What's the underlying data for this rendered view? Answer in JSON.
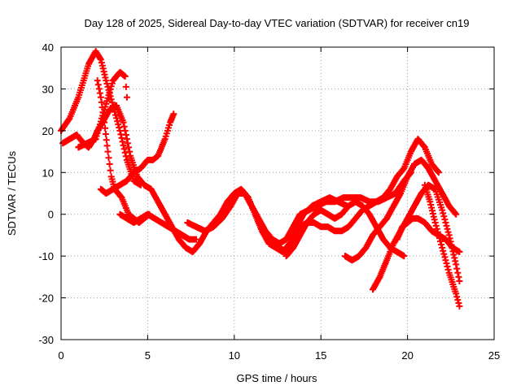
{
  "chart_data": {
    "type": "scatter",
    "title": "Day 128 of 2025, Sidereal Day-to-day VTEC variation (SDTVAR) for receiver cn19",
    "xlabel": "GPS time / hours",
    "ylabel": "SDTVAR / TECUs",
    "xlim": [
      0,
      25
    ],
    "ylim": [
      -30,
      40
    ],
    "xticks": [
      0,
      5,
      10,
      15,
      20,
      25
    ],
    "yticks": [
      -30,
      -20,
      -10,
      0,
      10,
      20,
      30,
      40
    ],
    "grid": true,
    "marker": "plus",
    "color": "#ff0000",
    "series": [
      {
        "name": "s1",
        "points": [
          [
            0,
            20
          ],
          [
            0.5,
            23
          ],
          [
            1,
            28
          ],
          [
            1.3,
            32
          ],
          [
            1.6,
            36
          ],
          [
            2,
            39
          ],
          [
            2.3,
            37
          ],
          [
            2.6,
            32
          ],
          [
            3,
            26
          ],
          [
            3.4,
            20
          ],
          [
            3.8,
            13
          ],
          [
            4.2,
            8
          ],
          [
            4.6,
            7
          ]
        ]
      },
      {
        "name": "s2",
        "points": [
          [
            0.1,
            17
          ],
          [
            0.5,
            18
          ],
          [
            0.9,
            19
          ],
          [
            1.3,
            17
          ],
          [
            1.6,
            16
          ],
          [
            1.9,
            18
          ],
          [
            2.1,
            20
          ],
          [
            2.4,
            22
          ],
          [
            2.8,
            25
          ],
          [
            3.2,
            26
          ],
          [
            3.6,
            22
          ],
          [
            4,
            14
          ],
          [
            4.4,
            9
          ],
          [
            4.8,
            7
          ],
          [
            5.2,
            6
          ],
          [
            5.6,
            3
          ],
          [
            6,
            0
          ],
          [
            6.4,
            -3
          ],
          [
            6.8,
            -6
          ],
          [
            7.2,
            -8
          ],
          [
            7.6,
            -9
          ],
          [
            8,
            -7
          ],
          [
            8.4,
            -4
          ],
          [
            8.8,
            -2
          ],
          [
            9.2,
            0
          ],
          [
            9.6,
            3
          ],
          [
            10,
            5
          ],
          [
            10.4,
            6
          ],
          [
            10.8,
            4
          ],
          [
            11.2,
            0
          ],
          [
            11.6,
            -4
          ],
          [
            12,
            -7
          ],
          [
            12.4,
            -8
          ],
          [
            12.8,
            -9
          ],
          [
            13.2,
            -7
          ],
          [
            13.6,
            -3
          ],
          [
            14,
            0
          ],
          [
            14.5,
            2
          ],
          [
            15,
            3
          ],
          [
            15.5,
            4
          ],
          [
            16,
            3
          ],
          [
            16.5,
            2
          ]
        ]
      },
      {
        "name": "s3",
        "points": [
          [
            1,
            16
          ],
          [
            1.5,
            17
          ],
          [
            2,
            18
          ],
          [
            2.5,
            25
          ],
          [
            3,
            32
          ],
          [
            3.4,
            34
          ],
          [
            3.7,
            33
          ],
          [
            3.8,
            28
          ]
        ]
      },
      {
        "name": "s4",
        "points": [
          [
            2.1,
            32
          ],
          [
            2.3,
            28
          ],
          [
            2.5,
            22
          ],
          [
            2.7,
            15
          ],
          [
            2.9,
            9
          ],
          [
            3.1,
            6
          ],
          [
            3.5,
            4
          ],
          [
            3.9,
            0
          ],
          [
            4.2,
            -1
          ],
          [
            4.5,
            -2
          ],
          [
            4.8,
            -1
          ],
          [
            5.1,
            0
          ]
        ]
      },
      {
        "name": "s5",
        "points": [
          [
            2.3,
            6
          ],
          [
            2.6,
            5
          ],
          [
            3,
            6
          ],
          [
            3.4,
            7
          ],
          [
            3.8,
            8
          ],
          [
            4.2,
            10
          ],
          [
            4.6,
            11
          ],
          [
            5,
            13
          ],
          [
            5.3,
            13
          ],
          [
            5.6,
            14
          ],
          [
            6,
            18
          ],
          [
            6.3,
            22
          ],
          [
            6.5,
            24
          ]
        ]
      },
      {
        "name": "s6",
        "points": [
          [
            3.4,
            0
          ],
          [
            3.8,
            -1
          ],
          [
            4.2,
            -2
          ],
          [
            4.6,
            -1
          ],
          [
            5,
            0
          ],
          [
            5.4,
            -1
          ],
          [
            5.8,
            -2
          ],
          [
            6.2,
            -3
          ],
          [
            6.6,
            -4
          ],
          [
            7,
            -5
          ],
          [
            7.4,
            -6
          ],
          [
            7.8,
            -6
          ]
        ]
      },
      {
        "name": "s7",
        "points": [
          [
            7.3,
            -2
          ],
          [
            7.8,
            -3
          ],
          [
            8.3,
            -4
          ],
          [
            8.8,
            -3
          ],
          [
            9.3,
            -1
          ],
          [
            9.8,
            2
          ],
          [
            10.2,
            5
          ],
          [
            10.6,
            5
          ],
          [
            11,
            2
          ],
          [
            11.4,
            -1
          ],
          [
            11.8,
            -4
          ],
          [
            12.2,
            -6
          ],
          [
            12.6,
            -7
          ],
          [
            13,
            -6
          ],
          [
            13.4,
            -3
          ],
          [
            13.8,
            0
          ],
          [
            14.3,
            1
          ],
          [
            14.8,
            2
          ],
          [
            15.3,
            3
          ],
          [
            15.8,
            3
          ],
          [
            16.3,
            4
          ],
          [
            16.8,
            4
          ],
          [
            17.3,
            4
          ],
          [
            17.8,
            3
          ],
          [
            18.3,
            3
          ],
          [
            18.8,
            4
          ],
          [
            19.3,
            5
          ],
          [
            19.8,
            8
          ],
          [
            20.2,
            10
          ]
        ]
      },
      {
        "name": "s8",
        "points": [
          [
            12.6,
            -8
          ],
          [
            13,
            -9
          ],
          [
            13.4,
            -6
          ],
          [
            13.8,
            -3
          ],
          [
            14.2,
            -2
          ],
          [
            14.6,
            -2
          ],
          [
            15,
            -3
          ],
          [
            15.4,
            -3
          ],
          [
            15.8,
            -4
          ],
          [
            16.2,
            -4
          ],
          [
            16.6,
            -3
          ],
          [
            17,
            -1
          ],
          [
            17.4,
            1
          ],
          [
            17.8,
            2
          ],
          [
            18.2,
            3
          ],
          [
            18.6,
            4
          ],
          [
            19,
            6
          ],
          [
            19.4,
            9
          ],
          [
            19.8,
            11
          ],
          [
            20.2,
            15
          ],
          [
            20.6,
            18
          ],
          [
            21,
            16
          ],
          [
            21.4,
            12
          ],
          [
            21.8,
            10
          ]
        ]
      },
      {
        "name": "s9",
        "points": [
          [
            13,
            -10
          ],
          [
            13.4,
            -8
          ],
          [
            13.8,
            -5
          ],
          [
            14.2,
            -2
          ],
          [
            14.6,
            0
          ],
          [
            15,
            1
          ],
          [
            15.4,
            0
          ],
          [
            15.8,
            -1
          ],
          [
            16.2,
            0
          ],
          [
            16.6,
            2
          ],
          [
            17,
            3
          ],
          [
            17.4,
            2
          ],
          [
            17.8,
            0
          ],
          [
            18.2,
            -3
          ],
          [
            18.6,
            -6
          ],
          [
            19,
            -8
          ],
          [
            19.4,
            -9
          ],
          [
            19.8,
            -10
          ]
        ]
      },
      {
        "name": "s10",
        "points": [
          [
            16.4,
            -10
          ],
          [
            16.8,
            -11
          ],
          [
            17.2,
            -10
          ],
          [
            17.6,
            -8
          ],
          [
            18,
            -5
          ],
          [
            18.4,
            -3
          ],
          [
            18.8,
            -1
          ],
          [
            19.2,
            2
          ],
          [
            19.6,
            5
          ],
          [
            20,
            9
          ],
          [
            20.4,
            12
          ],
          [
            20.8,
            13
          ],
          [
            21.2,
            11
          ],
          [
            21.6,
            8
          ],
          [
            22,
            5
          ],
          [
            22.4,
            2
          ],
          [
            22.8,
            0
          ]
        ]
      },
      {
        "name": "s11",
        "points": [
          [
            18,
            -18
          ],
          [
            18.4,
            -15
          ],
          [
            18.8,
            -11
          ],
          [
            19.2,
            -7
          ],
          [
            19.6,
            -4
          ],
          [
            20,
            -1
          ],
          [
            20.4,
            2
          ],
          [
            20.8,
            5
          ],
          [
            21.2,
            7
          ],
          [
            21.6,
            6
          ],
          [
            22,
            1
          ],
          [
            22.4,
            -5
          ],
          [
            22.8,
            -12
          ],
          [
            23,
            -16
          ]
        ]
      },
      {
        "name": "s12",
        "points": [
          [
            19.4,
            -6
          ],
          [
            19.7,
            -3
          ],
          [
            20,
            -2
          ],
          [
            20.3,
            -1
          ],
          [
            20.6,
            -1
          ],
          [
            21,
            -2
          ],
          [
            21.4,
            -4
          ],
          [
            21.8,
            -5
          ],
          [
            22.2,
            -6
          ],
          [
            22.6,
            -8
          ],
          [
            23,
            -9
          ]
        ]
      },
      {
        "name": "s13",
        "points": [
          [
            21,
            7
          ],
          [
            21.3,
            3
          ],
          [
            21.6,
            -2
          ],
          [
            22,
            -8
          ],
          [
            22.4,
            -14
          ],
          [
            22.8,
            -19
          ],
          [
            23,
            -22
          ]
        ]
      }
    ]
  }
}
